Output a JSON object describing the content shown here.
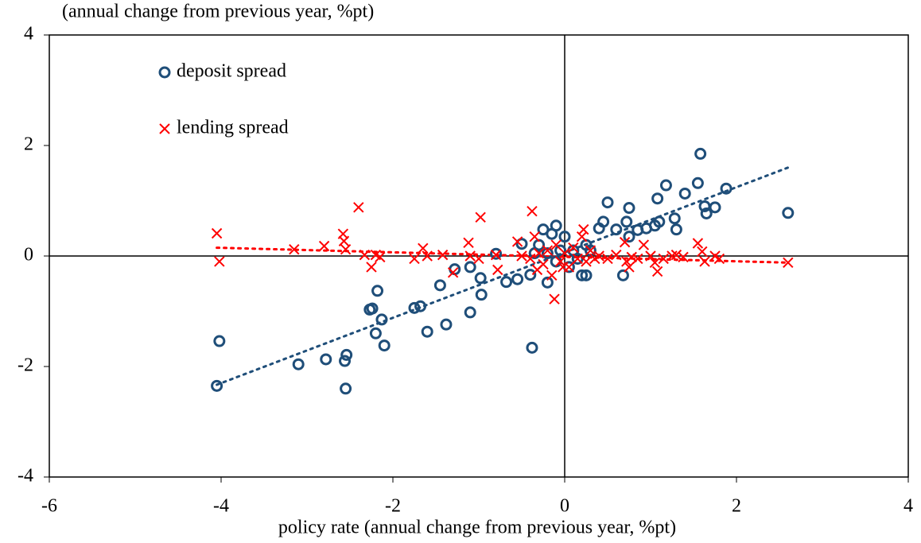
{
  "chart_data": {
    "type": "scatter",
    "ylabel": "(annual change from previous year, %pt)",
    "xlabel": "policy rate (annual change from previous year, %pt)",
    "xlim": [
      -6,
      4
    ],
    "xticks": [
      -6,
      -4,
      -2,
      0,
      2,
      4
    ],
    "ylim": [
      -4,
      4
    ],
    "yticks": [
      -4,
      -2,
      0,
      2,
      4
    ],
    "series": [
      {
        "name": "deposit spread",
        "color": "#1f4e79",
        "marker": "o",
        "x": [
          -4.05,
          -4.02,
          -3.1,
          -2.78,
          -2.56,
          -2.54,
          -2.55,
          -2.27,
          -2.24,
          -2.18,
          -2.2,
          -2.13,
          -2.1,
          -1.75,
          -1.68,
          -1.6,
          -1.45,
          -1.38,
          -1.28,
          -1.1,
          -1.1,
          -0.98,
          -0.97,
          -0.8,
          -0.68,
          -0.55,
          -0.5,
          -0.4,
          -0.38,
          -0.35,
          -0.3,
          -0.25,
          -0.2,
          -0.15,
          -0.1,
          -0.05,
          0,
          0.05,
          0.1,
          0.2,
          0.25,
          0.3,
          0.4,
          0.45,
          0.5,
          0.6,
          0.68,
          0.72,
          0.75,
          0.75,
          0.85,
          0.95,
          1.05,
          1.08,
          1.1,
          1.18,
          1.28,
          1.3,
          1.4,
          1.55,
          1.58,
          1.63,
          1.65,
          1.75,
          1.88,
          2.6,
          -0.1,
          0.15,
          -0.2,
          0.25
        ],
        "values": [
          -2.35,
          -1.54,
          -1.96,
          -1.87,
          -1.9,
          -1.79,
          -2.4,
          -0.97,
          -0.95,
          -0.63,
          -1.4,
          -1.15,
          -1.62,
          -0.94,
          -0.91,
          -1.37,
          -0.53,
          -1.24,
          -0.24,
          -0.2,
          -1.02,
          -0.4,
          -0.7,
          0.04,
          -0.47,
          -0.42,
          0.22,
          -0.34,
          -1.66,
          0.05,
          0.2,
          0.48,
          -0.48,
          0.4,
          0.55,
          0.1,
          0.35,
          -0.2,
          0.1,
          -0.35,
          0.2,
          0.1,
          0.5,
          0.62,
          0.97,
          0.48,
          -0.35,
          0.62,
          0.87,
          0.35,
          0.47,
          0.5,
          0.55,
          1.04,
          0.62,
          1.28,
          0.68,
          0.48,
          1.13,
          1.32,
          1.85,
          0.9,
          0.77,
          0.88,
          1.22,
          0.78,
          -0.1,
          -0.05,
          0.05,
          -0.35
        ]
      },
      {
        "name": "lending spread",
        "color": "#ff0000",
        "marker": "x",
        "x": [
          -4.05,
          -4.02,
          -3.15,
          -2.8,
          -2.58,
          -2.57,
          -2.55,
          -2.4,
          -2.33,
          -2.25,
          -2.2,
          -2.15,
          -1.75,
          -1.65,
          -1.6,
          -1.42,
          -1.3,
          -1.12,
          -1.1,
          -1.0,
          -0.98,
          -0.8,
          -0.78,
          -0.55,
          -0.5,
          -0.38,
          -0.35,
          -0.32,
          -0.3,
          -0.25,
          -0.2,
          -0.15,
          -0.12,
          -0.1,
          -0.05,
          0,
          0.05,
          0.1,
          0.15,
          0.2,
          0.22,
          0.25,
          0.3,
          0.35,
          0.4,
          0.5,
          0.6,
          0.7,
          0.72,
          0.75,
          0.78,
          0.85,
          0.92,
          1.0,
          1.05,
          1.08,
          1.15,
          1.25,
          1.3,
          1.38,
          1.55,
          1.6,
          1.63,
          1.75,
          1.8,
          2.6,
          -0.4,
          -0.02
        ],
        "values": [
          0.41,
          -0.1,
          0.12,
          0.18,
          0.4,
          0.27,
          0.12,
          0.88,
          0.02,
          -0.2,
          0.02,
          -0.02,
          -0.05,
          0.14,
          0.0,
          0.02,
          -0.3,
          0.24,
          0.0,
          -0.05,
          0.7,
          0.02,
          -0.25,
          0.26,
          0.0,
          0.81,
          0.35,
          -0.25,
          0.05,
          -0.15,
          0.1,
          -0.35,
          -0.78,
          0.2,
          -0.1,
          0.05,
          -0.2,
          0.15,
          -0.05,
          0.35,
          0.48,
          -0.1,
          0.1,
          -0.05,
          0.0,
          -0.05,
          0.02,
          0.25,
          -0.1,
          -0.2,
          -0.02,
          -0.05,
          0.2,
          0.0,
          -0.12,
          -0.28,
          -0.05,
          0.0,
          0.02,
          -0.02,
          0.23,
          0.08,
          -0.1,
          0.0,
          -0.05,
          -0.12,
          -0.05,
          -0.2
        ]
      }
    ],
    "trendlines": [
      {
        "color": "#1f4e79",
        "x": [
          -4.05,
          2.6
        ],
        "y": [
          -2.33,
          1.6
        ]
      },
      {
        "color": "#ff0000",
        "x": [
          -4.05,
          2.6
        ],
        "y": [
          0.15,
          -0.12
        ]
      }
    ]
  }
}
